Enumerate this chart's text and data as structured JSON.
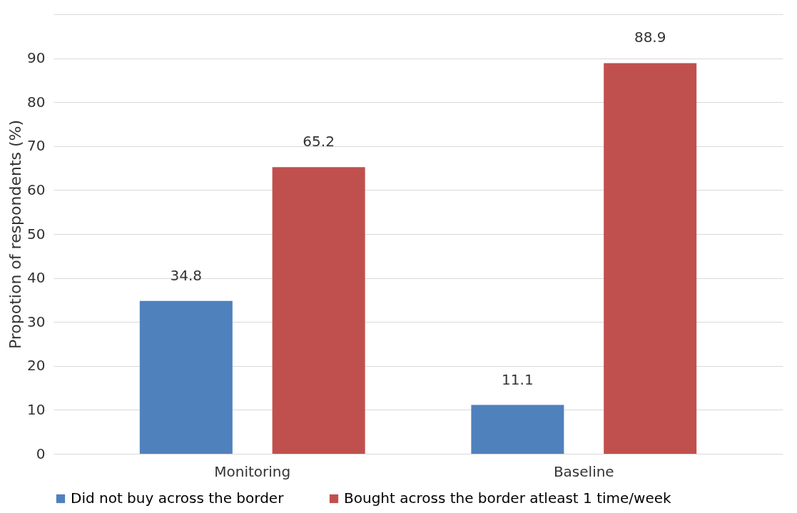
{
  "chart_data": {
    "type": "bar",
    "ylabel": "Propotion of respondents (%)",
    "categories": [
      "Monitoring",
      "Baseline"
    ],
    "series": [
      {
        "name": "Did not buy across the border",
        "color": "#4f81bd",
        "values": [
          34.8,
          11.1
        ]
      },
      {
        "name": "Bought across the border atleast 1 time/week",
        "color": "#c0504d",
        "values": [
          65.2,
          88.9
        ]
      }
    ],
    "ylim": [
      0,
      100
    ],
    "yticks": [
      0,
      10,
      20,
      30,
      40,
      50,
      60,
      70,
      80,
      90,
      {
        "value": 100,
        "label": null
      }
    ],
    "grid": "y",
    "legend": "bottom",
    "data_labels": true
  }
}
